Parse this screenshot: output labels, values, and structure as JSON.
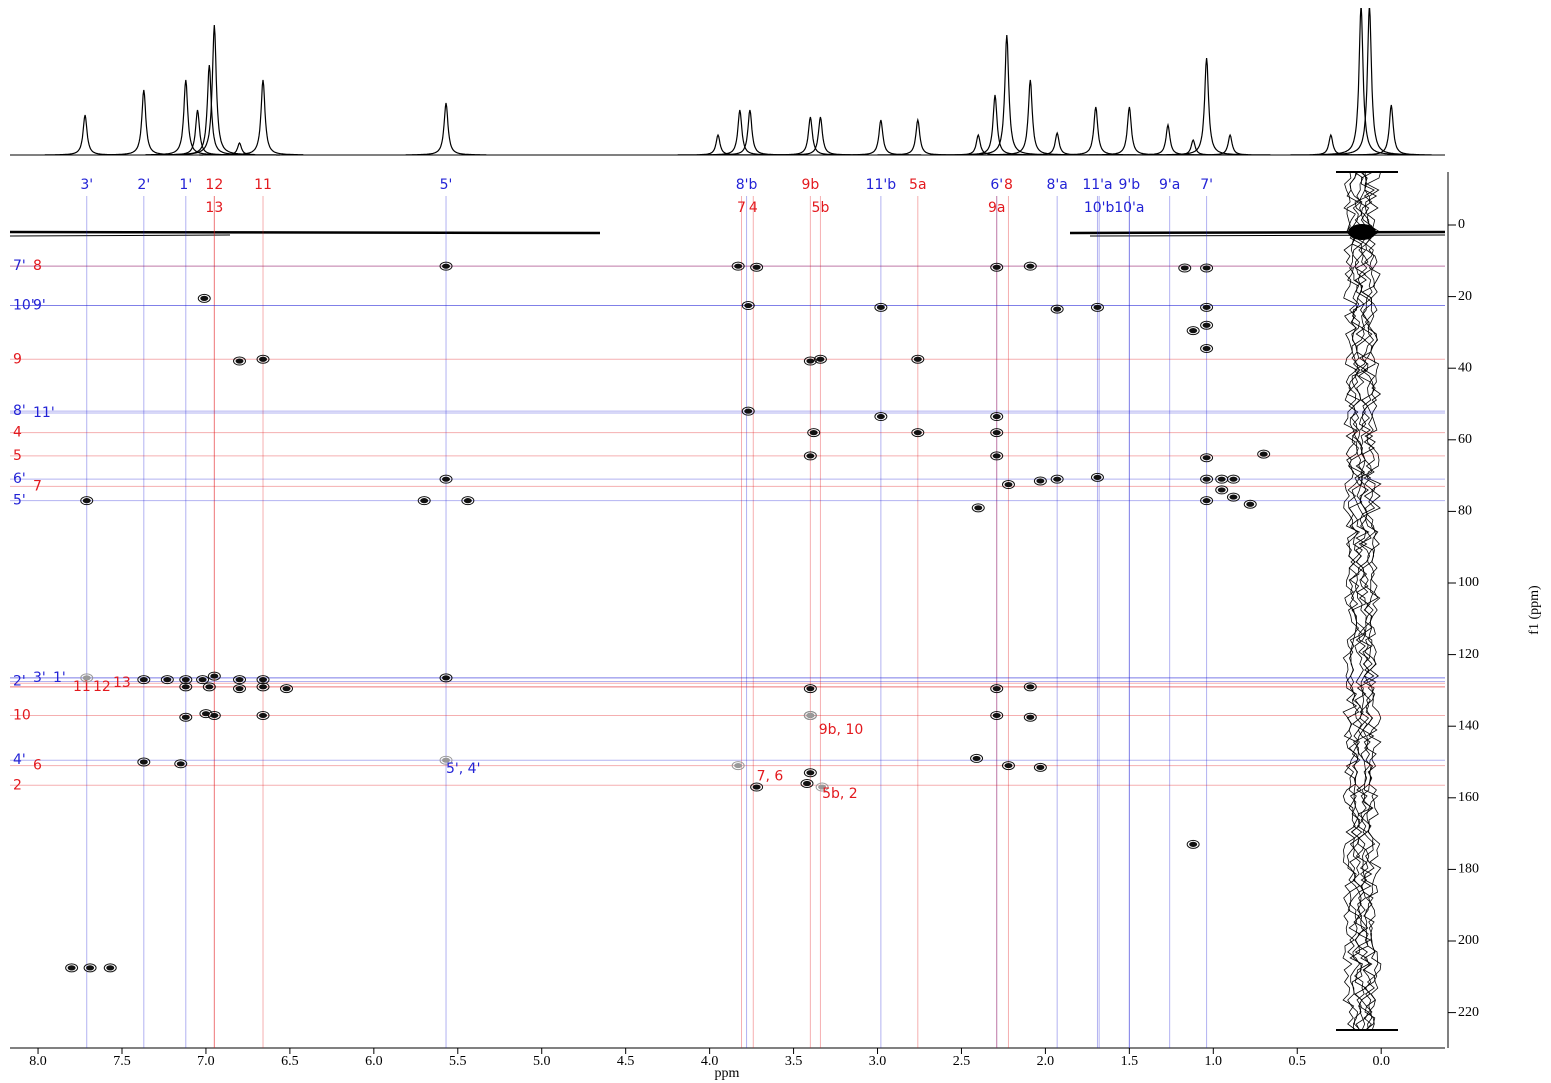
{
  "chart_data": {
    "type": "nmr2d",
    "x_label": "ppm",
    "y_label": "f1 (ppm)",
    "xlim": [
      8.17,
      -0.38
    ],
    "ylim": [
      -15,
      230
    ],
    "xticks": [
      {
        "value": 8,
        "label": "8.0"
      },
      7.5,
      {
        "value": 7,
        "label": "7.0"
      },
      6.5,
      {
        "value": 6,
        "label": "6.0"
      },
      5.5,
      {
        "value": 5,
        "label": "5.0"
      },
      4.5,
      {
        "value": 4,
        "label": "4.0"
      },
      3.5,
      {
        "value": 3,
        "label": "3.0"
      },
      2.5,
      {
        "value": 2,
        "label": "2.0"
      },
      1.5,
      {
        "value": 1,
        "label": "1.0"
      },
      0.5,
      {
        "value": 0,
        "label": "0.0"
      }
    ],
    "yticks": [
      0,
      20,
      40,
      60,
      80,
      100,
      120,
      140,
      160,
      180,
      200,
      220
    ],
    "spectrum_1d": {
      "color": "#000000",
      "x": [
        7.72,
        7.37,
        7.12,
        7.05,
        6.98,
        6.95,
        6.8,
        6.66,
        5.57,
        3.95,
        3.82,
        3.76,
        3.4,
        3.34,
        2.98,
        2.76,
        2.4,
        2.3,
        2.23,
        2.09,
        1.93,
        1.7,
        1.5,
        1.27,
        1.12,
        1.04,
        0.9,
        0.3,
        0.12,
        0.07,
        -0.06
      ],
      "values": [
        40,
        65,
        75,
        45,
        90,
        130,
        12,
        75,
        52,
        20,
        45,
        45,
        38,
        38,
        35,
        35,
        20,
        60,
        120,
        75,
        22,
        48,
        48,
        30,
        15,
        97,
        20,
        20,
        150,
        150,
        50
      ]
    },
    "cross_peaks": {
      "color": "#111111",
      "x": [
        5.57,
        3.83,
        3.72,
        2.29,
        2.09,
        1.17,
        1.04,
        7.01,
        3.77,
        2.98,
        1.93,
        1.69,
        1.04,
        1.12,
        1.04,
        1.04,
        6.8,
        6.66,
        3.4,
        3.34,
        2.76,
        3.77,
        2.98,
        2.29,
        3.38,
        2.76,
        2.29,
        3.4,
        2.29,
        1.04,
        0.7,
        5.57,
        2.22,
        2.03,
        1.93,
        1.69,
        1.04,
        0.95,
        0.88,
        0.95,
        0.88,
        1.04,
        0.78,
        2.4,
        5.7,
        5.44,
        7.71,
        7.37,
        7.23,
        7.12,
        7.02,
        6.95,
        6.8,
        6.66,
        5.57,
        7.12,
        6.98,
        6.8,
        6.66,
        6.52,
        3.4,
        2.29,
        2.09,
        7.12,
        7.0,
        6.95,
        6.66,
        3.4,
        2.29,
        2.09,
        7.37,
        7.15,
        3.4,
        3.42,
        3.72,
        2.41,
        2.22,
        2.03,
        1.12,
        7.8,
        7.69,
        7.57
      ],
      "y": [
        11.5,
        11.5,
        11.8,
        11.8,
        11.5,
        12,
        12,
        20.5,
        22.5,
        23,
        23.5,
        23,
        23,
        29.5,
        28,
        34.5,
        38,
        37.5,
        38,
        37.5,
        37.5,
        52,
        53.5,
        53.5,
        58,
        58,
        58,
        64.5,
        64.5,
        65,
        64,
        71,
        72.5,
        71.5,
        71,
        70.5,
        71,
        71,
        71,
        74,
        76,
        77,
        78,
        79,
        77,
        77,
        77,
        127,
        127,
        127,
        127,
        126,
        127,
        127,
        126.5,
        129,
        129,
        129.5,
        129,
        129.5,
        129.5,
        129.5,
        129,
        137.5,
        136.5,
        137,
        137,
        137,
        137,
        137.5,
        150,
        150.5,
        153,
        156,
        157,
        149,
        151,
        151.5,
        173,
        207.5,
        207.5,
        207.5
      ]
    },
    "weak_peaks": {
      "color": "#999999",
      "x": [
        7.71,
        5.57,
        3.83,
        3.4,
        3.33
      ],
      "y": [
        126.5,
        149.5,
        151,
        137,
        157
      ]
    },
    "f2_assignments": [
      {
        "label": "3'",
        "ppm": 7.71,
        "color": "#2323d6"
      },
      {
        "label": "2'",
        "ppm": 7.37,
        "color": "#2323d6"
      },
      {
        "label": "1'",
        "ppm": 7.12,
        "color": "#2323d6"
      },
      {
        "label": "12",
        "ppm": 6.95,
        "color": "#e3191e"
      },
      {
        "label": "13",
        "ppm": 6.95,
        "color": "#e3191e"
      },
      {
        "label": "11",
        "ppm": 6.66,
        "color": "#e3191e"
      },
      {
        "label": "5'",
        "ppm": 5.57,
        "color": "#2323d6"
      },
      {
        "label": "8'b",
        "ppm": 3.78,
        "color": "#2323d6"
      },
      {
        "label": "7",
        "ppm": 3.81,
        "color": "#e3191e"
      },
      {
        "label": "4",
        "ppm": 3.74,
        "color": "#e3191e"
      },
      {
        "label": "9b",
        "ppm": 3.4,
        "color": "#e3191e"
      },
      {
        "label": "5b",
        "ppm": 3.34,
        "color": "#e3191e"
      },
      {
        "label": "11'b",
        "ppm": 2.98,
        "color": "#2323d6"
      },
      {
        "label": "5a",
        "ppm": 2.76,
        "color": "#e3191e"
      },
      {
        "label": "6'",
        "ppm": 2.29,
        "color": "#2323d6"
      },
      {
        "label": "9a",
        "ppm": 2.29,
        "color": "#e3191e"
      },
      {
        "label": "8",
        "ppm": 2.22,
        "color": "#e3191e"
      },
      {
        "label": "8'a",
        "ppm": 1.93,
        "color": "#2323d6"
      },
      {
        "label": "11'a",
        "ppm": 1.69,
        "color": "#2323d6"
      },
      {
        "label": "10'b",
        "ppm": 1.68,
        "color": "#2323d6"
      },
      {
        "label": "9'b",
        "ppm": 1.5,
        "color": "#2323d6"
      },
      {
        "label": "10'a",
        "ppm": 1.5,
        "color": "#2323d6"
      },
      {
        "label": "9'a",
        "ppm": 1.26,
        "color": "#2323d6"
      },
      {
        "label": "7'",
        "ppm": 1.04,
        "color": "#2323d6"
      }
    ],
    "f1_assignments": [
      {
        "label": "7'",
        "ppm": 11.5,
        "color": "#2323d6"
      },
      {
        "label": "8",
        "ppm": 11.5,
        "color": "#e3191e"
      },
      {
        "label": "10'",
        "ppm": 22.5,
        "color": "#2323d6"
      },
      {
        "label": "9'",
        "ppm": 22.5,
        "color": "#2323d6"
      },
      {
        "label": "9",
        "ppm": 37.5,
        "color": "#e3191e"
      },
      {
        "label": "8'",
        "ppm": 52,
        "color": "#2323d6"
      },
      {
        "label": "11'",
        "ppm": 52.5,
        "color": "#2323d6"
      },
      {
        "label": "4",
        "ppm": 58,
        "color": "#e3191e"
      },
      {
        "label": "5",
        "ppm": 64.5,
        "color": "#e3191e"
      },
      {
        "label": "6'",
        "ppm": 71,
        "color": "#2323d6"
      },
      {
        "label": "7",
        "ppm": 73,
        "color": "#e3191e"
      },
      {
        "label": "5'",
        "ppm": 77,
        "color": "#2323d6"
      },
      {
        "label": "2'",
        "ppm": 127.5,
        "color": "#2323d6"
      },
      {
        "label": "3'",
        "ppm": 126.5,
        "color": "#2323d6"
      },
      {
        "label": "1'",
        "ppm": 126.5,
        "color": "#2323d6"
      },
      {
        "label": "11",
        "ppm": 129,
        "color": "#e3191e"
      },
      {
        "label": "12",
        "ppm": 129,
        "color": "#e3191e"
      },
      {
        "label": "13",
        "ppm": 128,
        "color": "#e3191e"
      },
      {
        "label": "10",
        "ppm": 137,
        "color": "#e3191e"
      },
      {
        "label": "4'",
        "ppm": 149.5,
        "color": "#2323d6"
      },
      {
        "label": "6",
        "ppm": 151,
        "color": "#e3191e"
      },
      {
        "label": "2",
        "ppm": 156.5,
        "color": "#e3191e"
      }
    ],
    "annotations": [
      {
        "text": "9b, 10",
        "x": 3.35,
        "y": 141,
        "color": "#e3191e"
      },
      {
        "text": "5', 4'",
        "x": 5.57,
        "y": 152,
        "color": "#2323d6"
      },
      {
        "text": "7, 6",
        "x": 3.72,
        "y": 154,
        "color": "#e3191e"
      },
      {
        "text": "5b, 2",
        "x": 3.33,
        "y": 159,
        "color": "#e3191e"
      }
    ]
  }
}
